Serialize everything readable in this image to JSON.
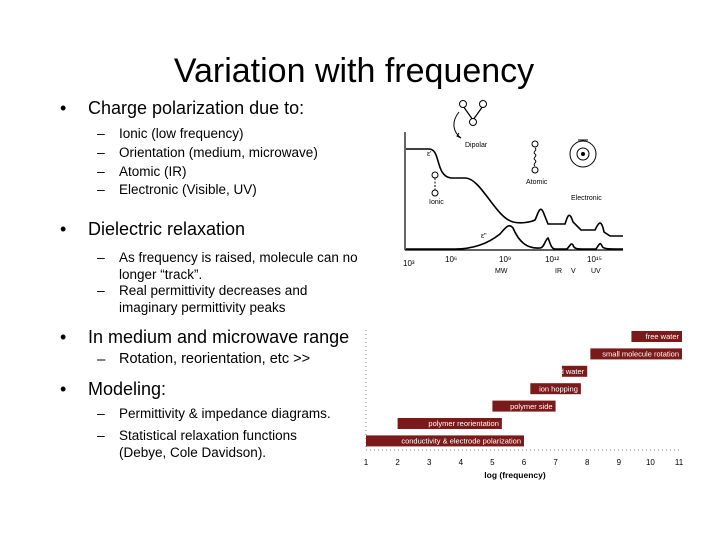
{
  "slide": {
    "title": "Variation with frequency",
    "sections": [
      {
        "heading": "Charge polarization due to:",
        "items": [
          "Ionic (low frequency)",
          "Orientation (medium, microwave)",
          "Atomic (IR)",
          "Electronic (Visible, UV)"
        ]
      },
      {
        "heading": "Dielectric relaxation",
        "items": [
          "As frequency is raised, molecule can no longer “track”.",
          "Real permittivity decreases and imaginary permittivity peaks"
        ]
      },
      {
        "heading": "In medium and microwave range",
        "items": [
          "Rotation, reorientation, etc >>"
        ]
      },
      {
        "heading": "Modeling:",
        "items": [
          "Permittivity & impedance diagrams.",
          "Statistical relaxation functions (Debye, Cole Davidson)."
        ]
      }
    ]
  },
  "permittivity_figure": {
    "labels": {
      "dipolar": "Dipolar",
      "atomic": "Atomic",
      "electronic": "Electronic",
      "ionic": "Ionic",
      "eps_real": "ε'",
      "eps_imag": "ε\""
    },
    "x_ticks": [
      "10³",
      "10⁶",
      "10⁹",
      "10¹²",
      "10¹⁵"
    ],
    "bands": [
      "MW",
      "IR",
      "V",
      "UV"
    ]
  },
  "range_chart": {
    "xlabel": "log (frequency)",
    "x_ticks": [
      "1",
      "2",
      "3",
      "4",
      "5",
      "6",
      "7",
      "8",
      "9",
      "10",
      "11"
    ],
    "bars": [
      {
        "label": "free water",
        "start": 9.4,
        "end": 11.0
      },
      {
        "label": "small molecule rotation",
        "start": 8.1,
        "end": 11.0
      },
      {
        "label": "bound water",
        "start": 7.2,
        "end": 8.0
      },
      {
        "label": "ion hopping",
        "start": 6.2,
        "end": 7.8
      },
      {
        "label": "polymer side",
        "start": 5.0,
        "end": 7.0
      },
      {
        "label": "polymer reorientation",
        "start": 2.0,
        "end": 5.3
      },
      {
        "label": "conductivity & electrode polarization",
        "start": 1.0,
        "end": 6.0
      }
    ],
    "bar_color": "#7a1a1a"
  }
}
